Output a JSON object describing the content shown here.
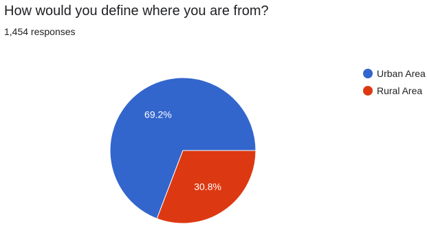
{
  "question": {
    "title": "How would you define where you are from?",
    "responses": "1,454 responses"
  },
  "chart_data": {
    "type": "pie",
    "title": "How would you define where you are from?",
    "legend_position": "top-right",
    "slices": [
      {
        "name": "Urban Area",
        "value": 69.2,
        "label": "69.2%",
        "color": "#3366cc"
      },
      {
        "name": "Rural Area",
        "value": 30.8,
        "label": "30.8%",
        "color": "#dc3912"
      }
    ]
  }
}
